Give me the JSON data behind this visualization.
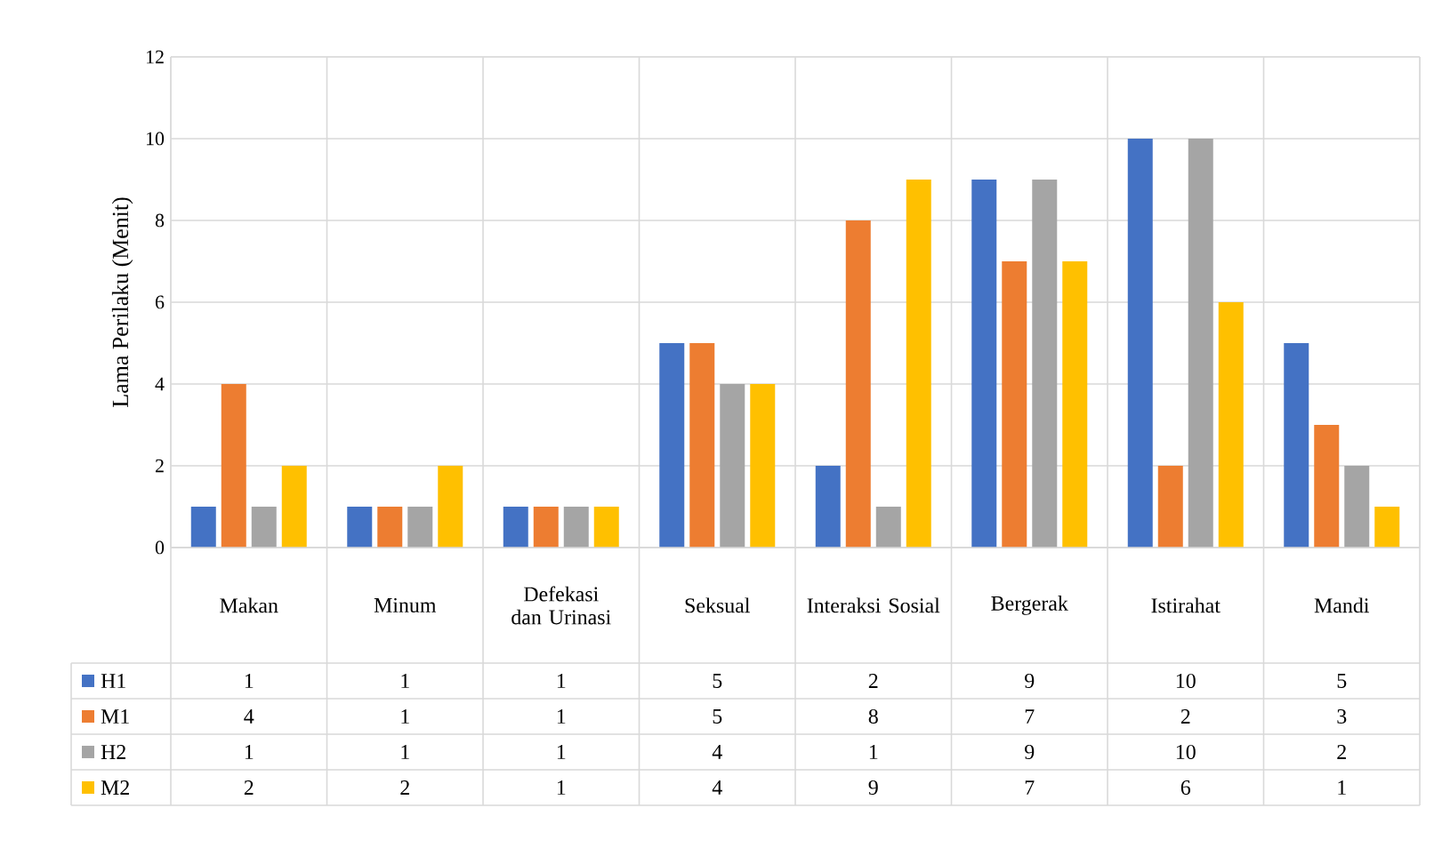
{
  "chart_data": {
    "type": "bar",
    "ylabel": "Lama Perilaku (Menit)",
    "categories": [
      "Makan",
      "Minum",
      "Defekasi dan Urinasi",
      "Seksual",
      "Interaksi Sosial",
      "Bergerak",
      "Istirahat",
      "Mandi"
    ],
    "series": [
      {
        "name": "H1",
        "color": "#4472c4",
        "values": [
          1,
          1,
          1,
          5,
          2,
          9,
          10,
          5
        ]
      },
      {
        "name": "M1",
        "color": "#ed7d31",
        "values": [
          4,
          1,
          1,
          5,
          8,
          7,
          2,
          3
        ]
      },
      {
        "name": "H2",
        "color": "#a5a5a5",
        "values": [
          1,
          1,
          1,
          4,
          1,
          9,
          10,
          2
        ]
      },
      {
        "name": "M2",
        "color": "#ffc000",
        "values": [
          2,
          2,
          1,
          4,
          9,
          7,
          6,
          1
        ]
      }
    ],
    "ylim": [
      0,
      12
    ],
    "yticks": [
      0,
      2,
      4,
      6,
      8,
      10,
      12
    ],
    "grid": "y",
    "legend": "bottom left",
    "data_labels": true
  }
}
